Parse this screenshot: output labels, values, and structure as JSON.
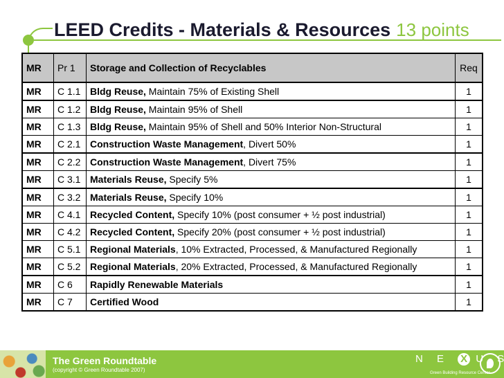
{
  "title": {
    "main": "LEED Credits - Materials & Resources",
    "points": "13 points"
  },
  "table": {
    "header": {
      "cat": "MR",
      "num": "Pr 1",
      "desc": "Storage and Collection of Recyclables",
      "pts": "Req"
    },
    "rows": [
      {
        "cat": "MR",
        "num": "C 1.1",
        "bold": "Bldg Reuse,",
        "rest": " Maintain 75% of Existing Shell",
        "pts": "1"
      },
      {
        "cat": "MR",
        "num": "C 1.2",
        "bold": "Bldg Reuse,",
        "rest": " Maintain 95% of Shell",
        "pts": "1"
      },
      {
        "cat": "MR",
        "num": "C 1.3",
        "bold": "Bldg Reuse,",
        "rest": " Maintain 95% of Shell and 50% Interior Non-Structural",
        "pts": "1"
      },
      {
        "cat": "MR",
        "num": "C 2.1",
        "bold": "Construction Waste Management",
        "rest": ", Divert 50%",
        "pts": "1"
      },
      {
        "cat": "MR",
        "num": "C 2.2",
        "bold": "Construction Waste Management",
        "rest": ", Divert 75%",
        "pts": "1"
      },
      {
        "cat": "MR",
        "num": "C 3.1",
        "bold": "Materials Reuse,",
        "rest": " Specify 5%",
        "pts": "1"
      },
      {
        "cat": "MR",
        "num": "C 3.2",
        "bold": "Materials Reuse,",
        "rest": " Specify 10%",
        "pts": "1"
      },
      {
        "cat": "MR",
        "num": "C 4.1",
        "bold": "Recycled Content,",
        "rest": " Specify 10% (post consumer + ½ post industrial)",
        "pts": "1"
      },
      {
        "cat": "MR",
        "num": "C 4.2",
        "bold": "Recycled Content,",
        "rest": " Specify 20% (post consumer + ½ post industrial)",
        "pts": "1"
      },
      {
        "cat": "MR",
        "num": "C 5.1",
        "bold": "Regional Materials",
        "rest": ", 10% Extracted, Processed, & Manufactured Regionally",
        "pts": "1"
      },
      {
        "cat": "MR",
        "num": "C 5.2",
        "bold": "Regional Materials",
        "rest": ", 20% Extracted, Processed, & Manufactured Regionally",
        "pts": "1"
      },
      {
        "cat": "MR",
        "num": "C 6",
        "bold": "Rapidly Renewable Materials",
        "rest": "",
        "pts": "1"
      },
      {
        "cat": "MR",
        "num": "C 7",
        "bold": "Certified Wood",
        "rest": "",
        "pts": "1"
      }
    ]
  },
  "footer": {
    "org_name": "The Green Roundtable",
    "copyright": "(copyright © Green Roundtable 2007)",
    "nexus_left": "N E",
    "nexus_x": "X",
    "nexus_right": "U S",
    "nexus_sub": "Green Building Resource Center"
  },
  "colors": {
    "accent": "#8dc63f",
    "header_bg": "#c7c7c7",
    "title": "#1a1a2e"
  }
}
